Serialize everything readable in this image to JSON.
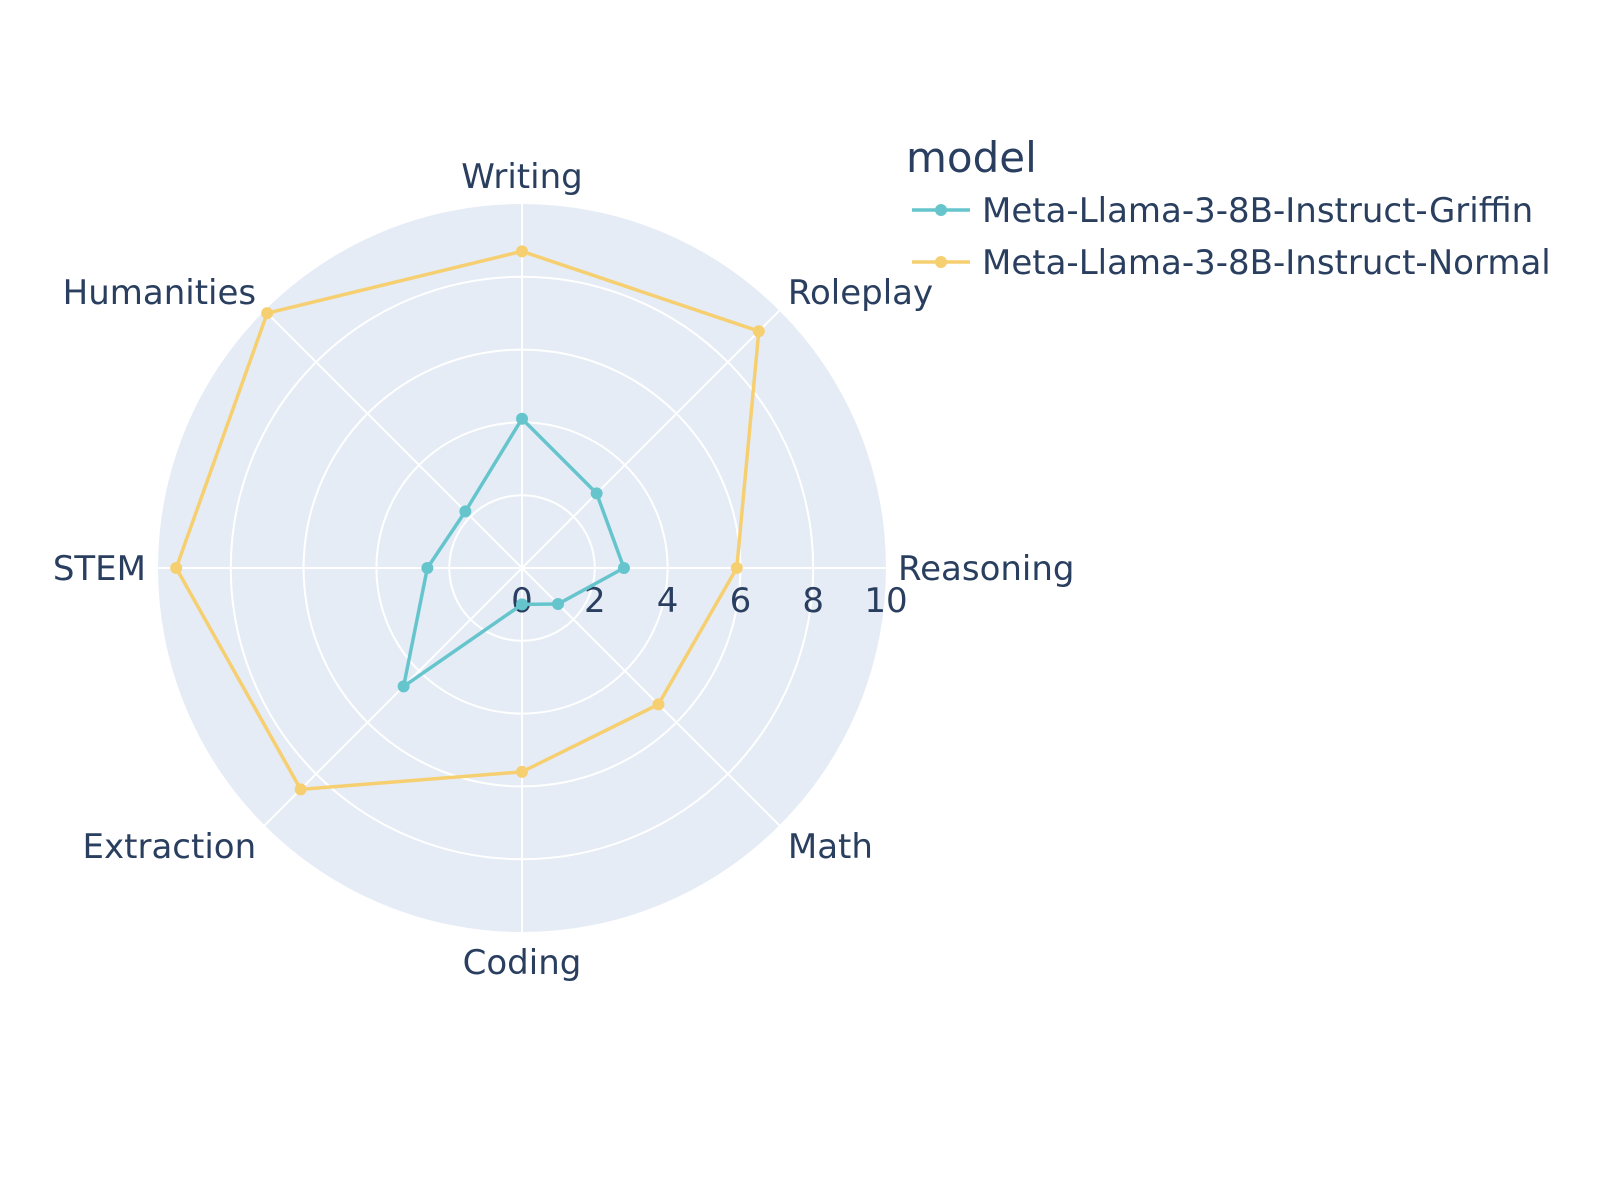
{
  "chart_data": {
    "type": "radar",
    "categories": [
      "Writing",
      "Roleplay",
      "Reasoning",
      "Math",
      "Coding",
      "Extraction",
      "STEM",
      "Humanities"
    ],
    "radial_range": [
      0,
      10
    ],
    "radial_ticks": [
      "0",
      "2",
      "4",
      "6",
      "8",
      "10"
    ],
    "legend": {
      "title": "model",
      "placement": "top-right"
    },
    "series": [
      {
        "name": "Meta-Llama-3-8B-Instruct-Griffin",
        "color": "#66c5cc",
        "values": [
          4.1,
          2.9,
          2.8,
          1.4,
          1.0,
          4.6,
          2.6,
          2.2
        ]
      },
      {
        "name": "Meta-Llama-3-8B-Instruct-Normal",
        "color": "#f6cf71",
        "values": [
          8.7,
          9.2,
          5.9,
          5.3,
          5.6,
          8.6,
          9.5,
          9.9
        ]
      }
    ],
    "background": "#e5ecf6",
    "grid_color": "#ffffff",
    "text_color": "#2a3f5f"
  }
}
